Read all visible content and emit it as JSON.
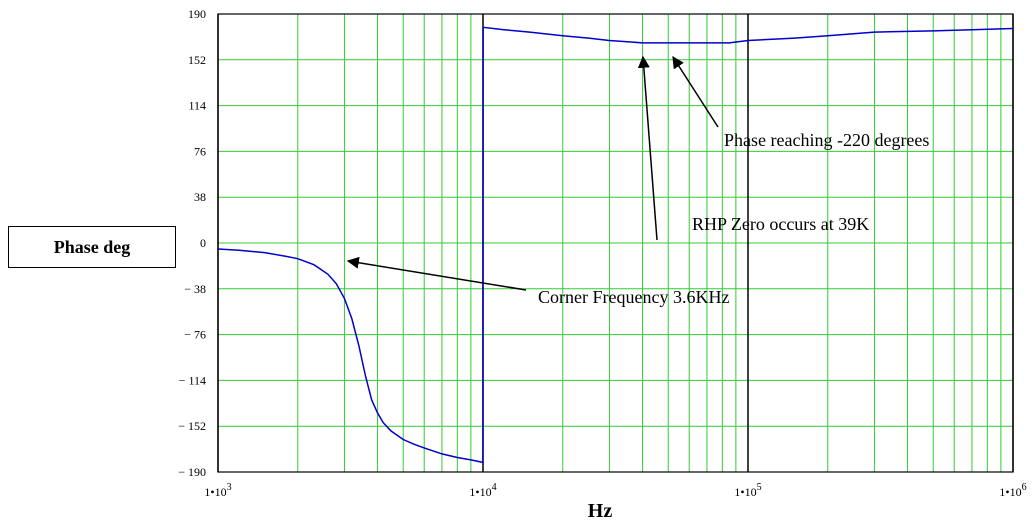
{
  "chart_data": {
    "type": "line",
    "title": "",
    "xlabel": "Hz",
    "ylabel": "Phase deg",
    "x_scale": "log",
    "xlim": [
      1000,
      1000000
    ],
    "ylim": [
      -190,
      190
    ],
    "y_ticks": [
      190,
      152,
      114,
      76,
      38,
      0,
      -38,
      -76,
      -114,
      -152,
      -190
    ],
    "y_tick_labels": [
      "190",
      "152",
      "114",
      "76",
      "38",
      "0",
      "− 38",
      "− 76",
      "− 114",
      "− 152",
      "− 190"
    ],
    "x_ticks": [
      1000,
      10000,
      100000,
      1000000
    ],
    "x_tick_labels": [
      {
        "mant": "1•10",
        "exp": "3"
      },
      {
        "mant": "1•10",
        "exp": "4"
      },
      {
        "mant": "1•10",
        "exp": "5"
      },
      {
        "mant": "1•10",
        "exp": "6"
      }
    ],
    "grid": true,
    "series": [
      {
        "color": "#0000cc",
        "x": [
          1000,
          1200,
          1500,
          1800,
          2000,
          2300,
          2600,
          2800,
          3000,
          3200,
          3400,
          3600,
          3800,
          4000,
          4200,
          4500,
          5000,
          5500,
          6000,
          7000,
          8000,
          9000,
          9990,
          10000,
          10010,
          12000,
          15000,
          20000,
          25000,
          30000,
          35000,
          40000,
          45000,
          50000,
          60000,
          70000,
          85000,
          100000,
          150000,
          200000,
          300000,
          500000,
          700000,
          1000000
        ],
        "y": [
          -5,
          -6,
          -8,
          -11,
          -13,
          -18,
          -26,
          -34,
          -46,
          -63,
          -85,
          -110,
          -130,
          -141,
          -149,
          -156,
          -163,
          -167,
          -170,
          -175,
          -178,
          -180,
          -182,
          0,
          179,
          177,
          175,
          172,
          170,
          168,
          167,
          166,
          166,
          166,
          166,
          166,
          166,
          168,
          170,
          172,
          175,
          176,
          177,
          178
        ]
      }
    ],
    "annotations": [
      {
        "text": "Corner Frequency 3.6KHz"
      },
      {
        "text": "RHP Zero occurs at 39K"
      },
      {
        "text": "Phase reaching -220 degrees"
      }
    ]
  }
}
